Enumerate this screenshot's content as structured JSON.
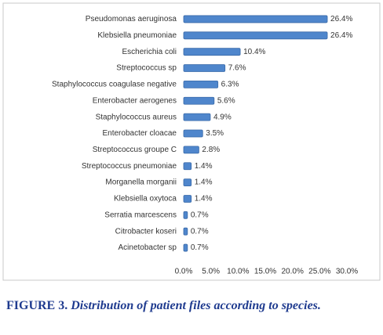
{
  "chart_data": {
    "type": "bar",
    "orientation": "horizontal",
    "categories": [
      "Pseudomonas aeruginosa",
      "Klebsiella pneumoniae",
      "Escherichia coli",
      "Streptococcus sp",
      "Staphylococcus coagulase negative",
      "Enterobacter aerogenes",
      "Staphylococcus aureus",
      "Enterobacter cloacae",
      "Streptococcus groupe C",
      "Streptococcus pneumoniae",
      "Morganella morganii",
      "Klebsiella oxytoca",
      "Serratia marcescens",
      "Citrobacter koseri",
      "Acinetobacter sp"
    ],
    "values": [
      26.4,
      26.4,
      10.4,
      7.6,
      6.3,
      5.6,
      4.9,
      3.5,
      2.8,
      1.4,
      1.4,
      1.4,
      0.7,
      0.7,
      0.7
    ],
    "value_labels": [
      "26.4%",
      "26.4%",
      "10.4%",
      "7.6%",
      "6.3%",
      "5.6%",
      "4.9%",
      "3.5%",
      "2.8%",
      "1.4%",
      "1.4%",
      "1.4%",
      "0.7%",
      "0.7%",
      "0.7%"
    ],
    "color": "#4f86cc",
    "xlim": [
      0,
      30
    ],
    "xticks": [
      {
        "value": 0,
        "label": "0.0%"
      },
      {
        "value": 5,
        "label": "5.0%"
      },
      {
        "value": 10,
        "label": "10.0%"
      },
      {
        "value": 15,
        "label": "15.0%"
      },
      {
        "value": 20,
        "label": "20.0%"
      },
      {
        "value": 25,
        "label": "25.0%"
      },
      {
        "value": 30,
        "label": "30.0%"
      }
    ],
    "grid": false,
    "caption_label": "FIGURE 3.",
    "caption": "Distribution of patient files according to species."
  }
}
